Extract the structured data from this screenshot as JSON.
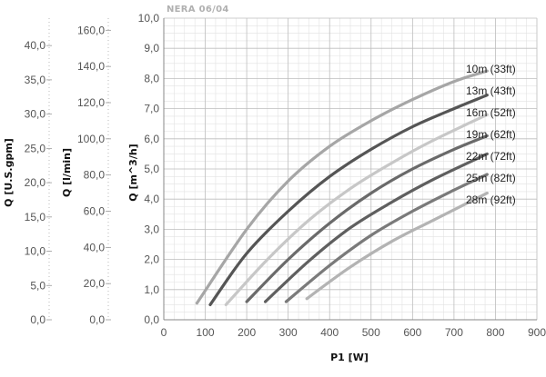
{
  "chart_data": {
    "type": "line",
    "title": "NERA 06/04",
    "xlabel": "P1 [W]",
    "ylabel": "Q [m^3/h]",
    "xlim": [
      0,
      900
    ],
    "ylim": [
      0,
      10
    ],
    "x_ticks": [
      "0",
      "100",
      "200",
      "300",
      "400",
      "500",
      "600",
      "700",
      "800",
      "900"
    ],
    "y_ticks": [
      "0,0",
      "1,0",
      "2,0",
      "3,0",
      "4,0",
      "5,0",
      "6,0",
      "7,0",
      "8,0",
      "9,0",
      "10,0"
    ],
    "secondary_axes": [
      {
        "label": "Q [l/min]",
        "ticks": [
          "0,0",
          "20,0",
          "40,0",
          "60,0",
          "80,0",
          "100,0",
          "120,0",
          "140,0",
          "160,0"
        ],
        "range": [
          0,
          166.7
        ]
      },
      {
        "label": "Q [U.S.gpm]",
        "ticks": [
          "0,0",
          "5,0",
          "10,0",
          "15,0",
          "20,0",
          "25,0",
          "30,0",
          "35,0",
          "40,0"
        ],
        "range": [
          0,
          44.0
        ]
      }
    ],
    "series": [
      {
        "name": "10m (33ft)",
        "color": "#a6a6a6",
        "x": [
          80,
          200,
          300,
          400,
          500,
          600,
          700,
          780
        ],
        "y": [
          0.55,
          3.0,
          4.6,
          5.75,
          6.6,
          7.3,
          7.9,
          8.25
        ]
      },
      {
        "name": "13m (43ft)",
        "color": "#555555",
        "x": [
          112,
          200,
          300,
          400,
          500,
          600,
          700,
          780
        ],
        "y": [
          0.5,
          2.2,
          3.6,
          4.75,
          5.65,
          6.4,
          7.0,
          7.45
        ]
      },
      {
        "name": "16m (52ft)",
        "color": "#c7c7c7",
        "x": [
          150,
          250,
          350,
          450,
          550,
          650,
          780
        ],
        "y": [
          0.5,
          2.0,
          3.3,
          4.35,
          5.2,
          5.95,
          6.8
        ]
      },
      {
        "name": "19m (62ft)",
        "color": "#6a6a6a",
        "x": [
          200,
          300,
          400,
          500,
          600,
          700,
          780
        ],
        "y": [
          0.6,
          2.0,
          3.2,
          4.2,
          5.0,
          5.65,
          6.1
        ]
      },
      {
        "name": "22m (72ft)",
        "color": "#5f5f5f",
        "x": [
          245,
          350,
          450,
          550,
          650,
          780
        ],
        "y": [
          0.6,
          1.95,
          3.05,
          3.9,
          4.65,
          5.5
        ]
      },
      {
        "name": "25m (82ft)",
        "color": "#7a7a7a",
        "x": [
          295,
          400,
          500,
          600,
          700,
          780
        ],
        "y": [
          0.6,
          1.8,
          2.8,
          3.6,
          4.3,
          4.82
        ]
      },
      {
        "name": "28m (92ft)",
        "color": "#b3b3b3",
        "x": [
          345,
          450,
          550,
          650,
          780
        ],
        "y": [
          0.7,
          1.75,
          2.6,
          3.3,
          4.2
        ]
      }
    ],
    "grid": true
  }
}
